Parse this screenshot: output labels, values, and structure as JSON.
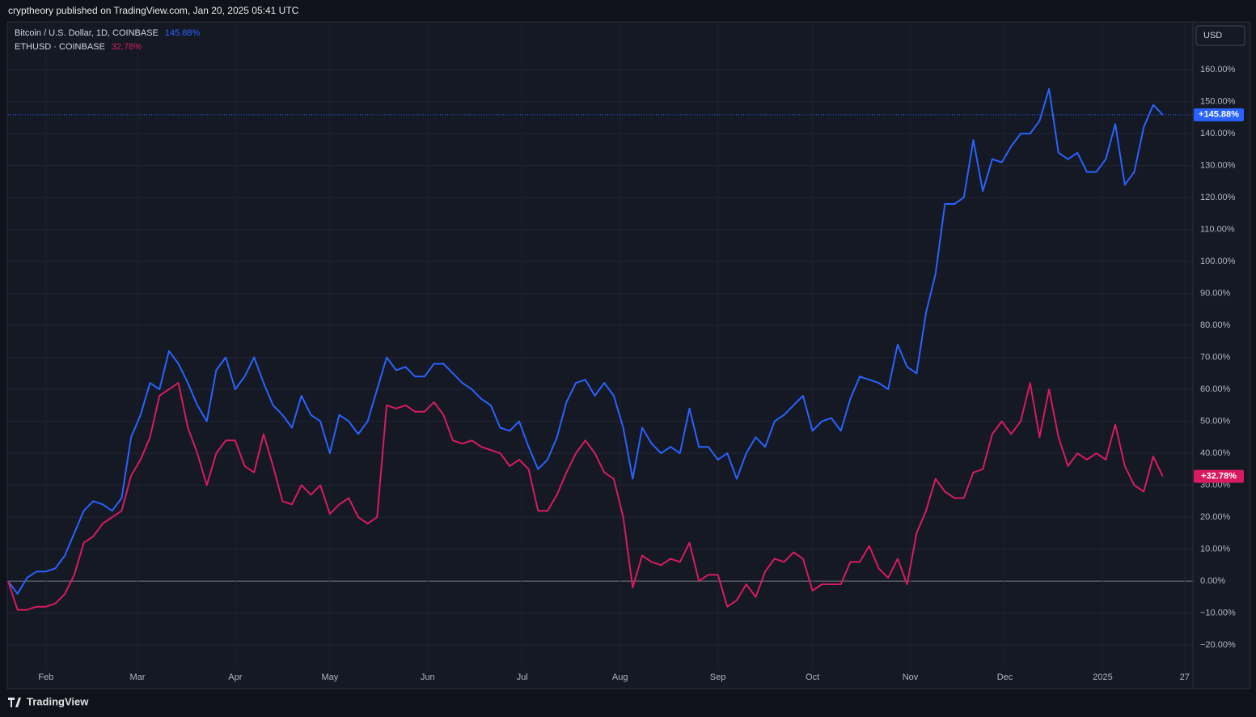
{
  "header": "cryptheory published on TradingView.com, Jan 20, 2025 05:41 UTC",
  "footer": "TradingView",
  "currency_button": "USD",
  "chart_data": {
    "type": "line",
    "xlim": [
      0,
      125.2
    ],
    "xticks": [
      {
        "value": 4,
        "label": "Feb"
      },
      {
        "value": 13.67,
        "label": "Mar"
      },
      {
        "value": 24,
        "label": "Apr"
      },
      {
        "value": 34,
        "label": "May"
      },
      {
        "value": 44.33,
        "label": "Jun"
      },
      {
        "value": 54.33,
        "label": "Jul"
      },
      {
        "value": 64.67,
        "label": "Aug"
      },
      {
        "value": 75,
        "label": "Sep"
      },
      {
        "value": 85,
        "label": "Oct"
      },
      {
        "value": 95.33,
        "label": "Nov"
      },
      {
        "value": 105.33,
        "label": "Dec"
      },
      {
        "value": 115.67,
        "label": "2025"
      },
      {
        "value": 124.33,
        "label": "27"
      }
    ],
    "ylim": [
      -33.4,
      174.7
    ],
    "yticks": [
      {
        "value": -20,
        "label": "−20.00%"
      },
      {
        "value": -10,
        "label": "−10.00%"
      },
      {
        "value": 0,
        "label": "0.00%"
      },
      {
        "value": 10,
        "label": "10.00%"
      },
      {
        "value": 20,
        "label": "20.00%"
      },
      {
        "value": 30,
        "label": "30.00%"
      },
      {
        "value": 40,
        "label": "40.00%"
      },
      {
        "value": 50,
        "label": "50.00%"
      },
      {
        "value": 60,
        "label": "60.00%"
      },
      {
        "value": 70,
        "label": "70.00%"
      },
      {
        "value": 80,
        "label": "80.00%"
      },
      {
        "value": 90,
        "label": "90.00%"
      },
      {
        "value": 100,
        "label": "100.00%"
      },
      {
        "value": 110,
        "label": "110.00%"
      },
      {
        "value": 120,
        "label": "120.00%"
      },
      {
        "value": 130,
        "label": "130.00%"
      },
      {
        "value": 140,
        "label": "140.00%"
      },
      {
        "value": 150,
        "label": "150.00%"
      },
      {
        "value": 160,
        "label": "160.00%"
      }
    ],
    "grid": true,
    "series": [
      {
        "name": "Bitcoin / U.S. Dollar, 1D, COINBASE",
        "color": "#2962ff",
        "legend_value": "145.88%",
        "price_label": "+145.88%",
        "values": [
          0,
          -4,
          1,
          3,
          3,
          4,
          8,
          15,
          22,
          25,
          24,
          22,
          26,
          45,
          52,
          62,
          60,
          72,
          68,
          62,
          55,
          50,
          66,
          70,
          60,
          64,
          70,
          62,
          55,
          52,
          48,
          58,
          52,
          50,
          40,
          52,
          50,
          46,
          50,
          60,
          70,
          66,
          67,
          64,
          64,
          68,
          68,
          65,
          62,
          60,
          57,
          55,
          48,
          47,
          50,
          42,
          35,
          38,
          45,
          56,
          62,
          63,
          58,
          62,
          58,
          48,
          32,
          48,
          43,
          40,
          42,
          40,
          54,
          42,
          42,
          38,
          40,
          32,
          40,
          45,
          42,
          50,
          52,
          55,
          58,
          47,
          50,
          51,
          47,
          57,
          64,
          63,
          62,
          60,
          74,
          67,
          65,
          84,
          96,
          118,
          118,
          120,
          138,
          122,
          132,
          131,
          136,
          140,
          140,
          144,
          154,
          134,
          132,
          134,
          128,
          128,
          132,
          143,
          124,
          128,
          142,
          149,
          145.88
        ]
      },
      {
        "name": "ETHUSD · COINBASE",
        "color": "#d81b60",
        "legend_value": "32.78%",
        "price_label": "+32.78%",
        "values": [
          0,
          -9,
          -9,
          -8,
          -8,
          -7,
          -4,
          2,
          12,
          14,
          18,
          20,
          22,
          33,
          38,
          45,
          58,
          60,
          62,
          48,
          40,
          30,
          40,
          44,
          44,
          36,
          34,
          46,
          36,
          25,
          24,
          30,
          27,
          30,
          21,
          24,
          26,
          20,
          18,
          20,
          55,
          54,
          55,
          53,
          53,
          56,
          52,
          44,
          43,
          44,
          42,
          41,
          40,
          36,
          38,
          35,
          22,
          22,
          27,
          34,
          40,
          44,
          40,
          34,
          32,
          20,
          -2,
          8,
          6,
          5,
          7,
          6,
          12,
          0,
          2,
          2,
          -8,
          -6,
          -1,
          -5,
          3,
          7,
          6,
          9,
          7,
          -3,
          -1,
          -1,
          -1,
          6,
          6,
          11,
          4,
          1,
          7,
          -1,
          15,
          22,
          32,
          28,
          26,
          26,
          34,
          35,
          46,
          50,
          46,
          50,
          62,
          45,
          60,
          45,
          36,
          40,
          38,
          40,
          38,
          49,
          36,
          30,
          28,
          39,
          32.78
        ]
      }
    ]
  }
}
